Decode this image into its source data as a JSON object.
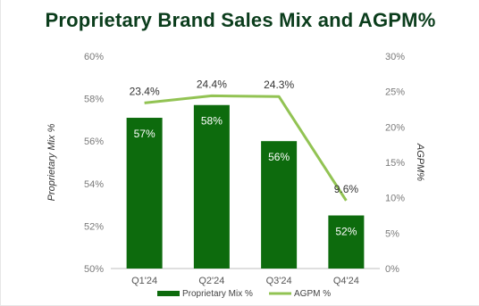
{
  "title": "Proprietary Brand Sales Mix and AGPM%",
  "chart_data": {
    "type": "bar",
    "categories": [
      "Q1'24",
      "Q2'24",
      "Q3'24",
      "Q4'24"
    ],
    "series": [
      {
        "name": "Proprietary Mix %",
        "type": "bar",
        "axis": "left",
        "values": [
          57.1,
          57.7,
          56.0,
          52.5
        ],
        "labels": [
          "57%",
          "58%",
          "56%",
          "52%"
        ],
        "color": "#0d6b0d"
      },
      {
        "name": "AGPM %",
        "type": "line",
        "axis": "right",
        "values": [
          23.4,
          24.4,
          24.3,
          9.6
        ],
        "labels": [
          "23.4%",
          "24.4%",
          "24.3%",
          "9.6%"
        ],
        "color": "#92c353"
      }
    ],
    "ylabel": "Proprietary Mix %",
    "y2label": "AGPM%",
    "ylim": [
      50,
      60
    ],
    "y2lim": [
      0,
      30
    ],
    "yticks": [
      "50%",
      "52%",
      "54%",
      "56%",
      "58%",
      "60%"
    ],
    "y2ticks": [
      "0%",
      "5%",
      "10%",
      "15%",
      "20%",
      "25%",
      "30%"
    ],
    "grid": false,
    "legend_position": "bottom"
  },
  "colors": {
    "title": "#0b3d1c",
    "bar": "#0d6b0d",
    "line": "#92c353"
  }
}
